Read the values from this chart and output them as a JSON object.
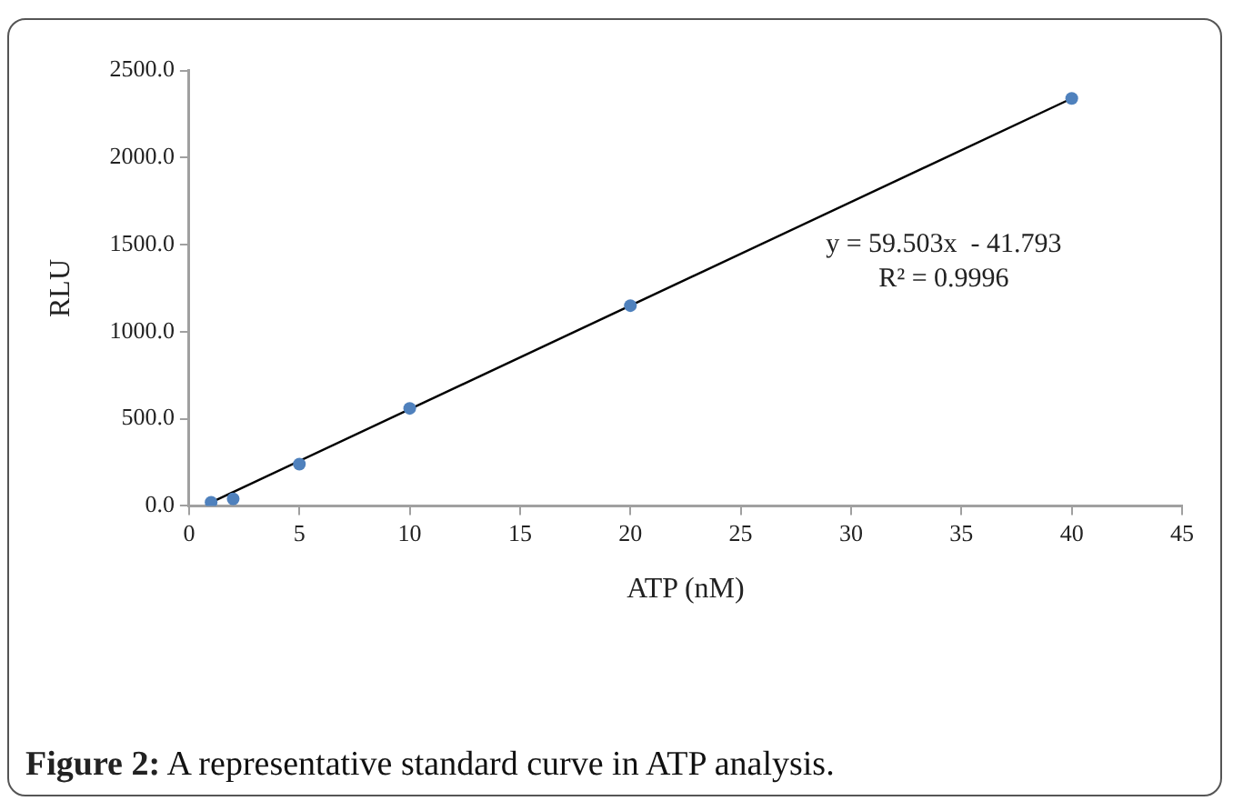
{
  "chart_data": {
    "type": "scatter",
    "title": "Figure 2: A representative standard curve in ATP analysis.",
    "xlabel": "ATP (nM)",
    "ylabel": "RLU",
    "series": [
      {
        "type": "scatter",
        "color": "#4f81bd",
        "marker": "circle",
        "x": [
          1,
          2,
          5,
          10,
          20,
          40
        ],
        "values": [
          20,
          40,
          240,
          560,
          1150,
          2340
        ]
      },
      {
        "type": "line",
        "color": "#000000",
        "marker": "none",
        "x": [
          1,
          40
        ],
        "values": [
          20,
          2340
        ]
      }
    ],
    "annotations": [
      "y = 59.503x  - 41.793",
      "R² = 0.9996"
    ],
    "xlim": [
      0,
      45
    ],
    "xticks": [
      0,
      5,
      10,
      15,
      20,
      25,
      30,
      35,
      40,
      45
    ],
    "ylim": [
      0,
      2500
    ],
    "yticks": [
      {
        "value": 0,
        "label": "0.0"
      },
      {
        "value": 500,
        "label": "500.0"
      },
      {
        "value": 1000,
        "label": "1000.0"
      },
      {
        "value": 1500,
        "label": "1500.0"
      },
      {
        "value": 2000,
        "label": "2000.0"
      },
      {
        "value": 2500,
        "label": "2500.0"
      }
    ],
    "grid": false,
    "legend": false
  }
}
